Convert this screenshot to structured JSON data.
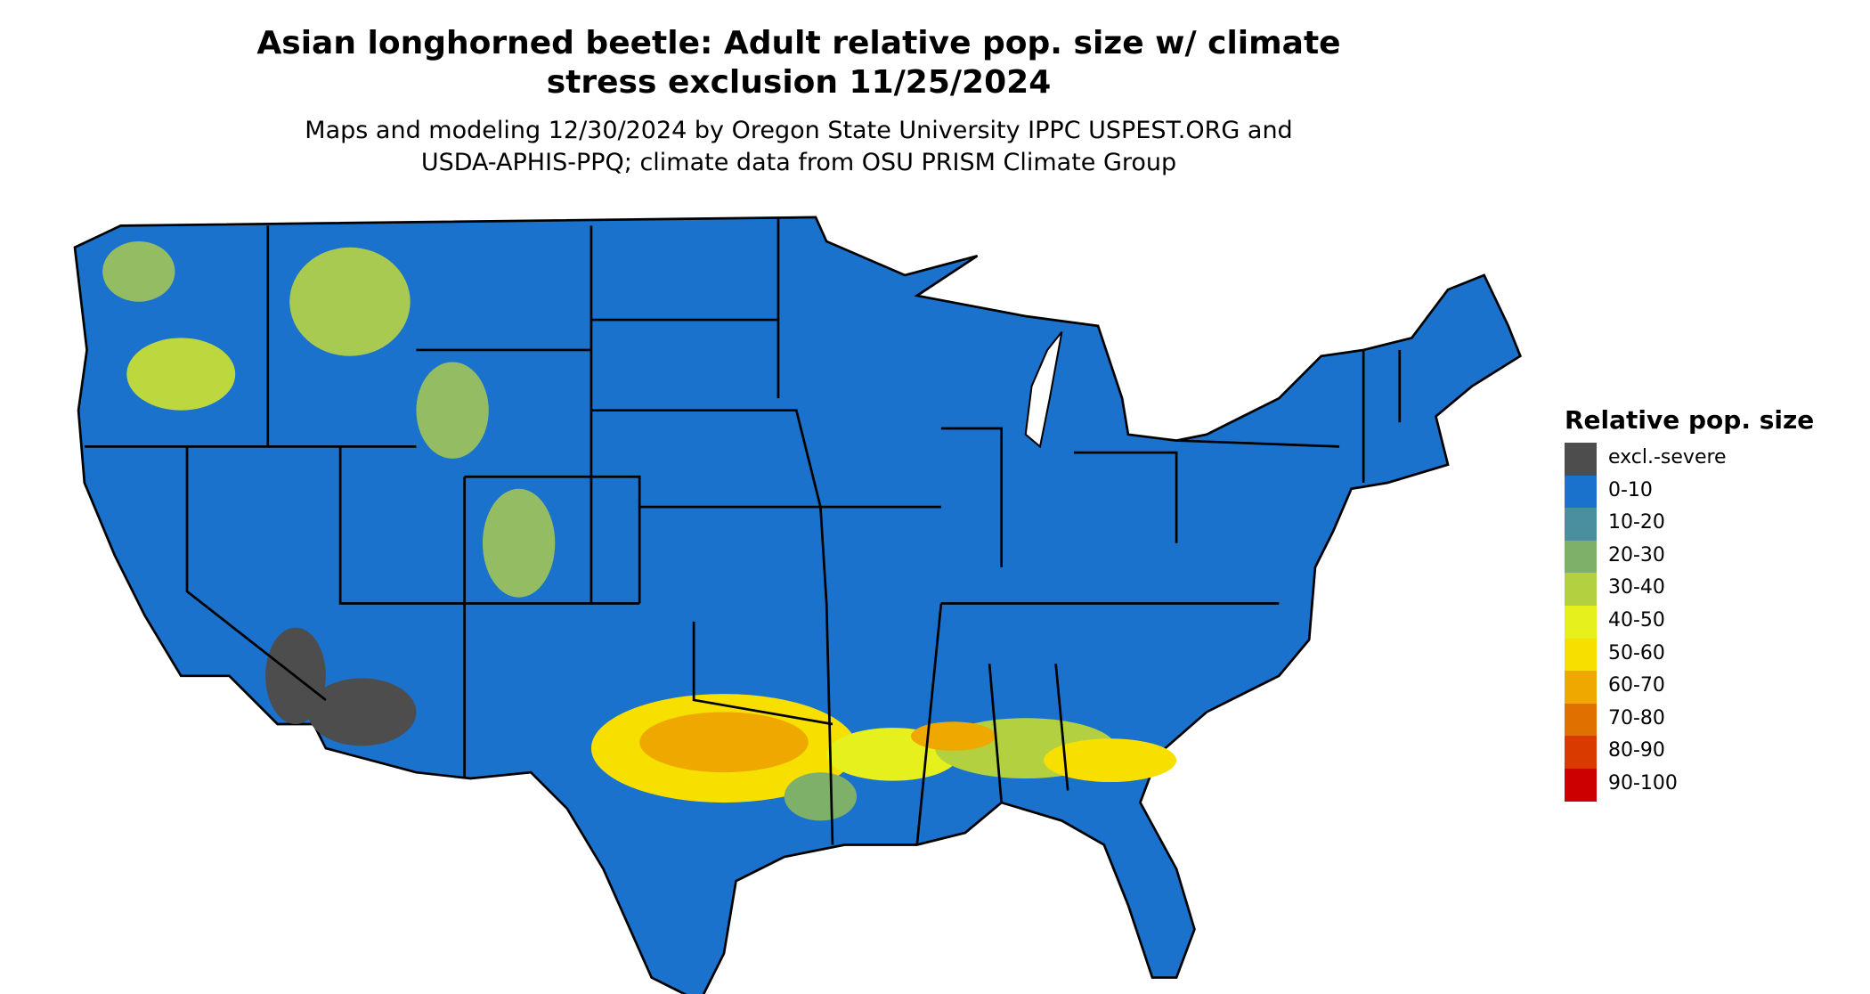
{
  "header": {
    "title": [
      "Asian longhorned beetle: Adult relative pop. size w/ climate",
      "stress exclusion 11/25/2024"
    ],
    "subtitle": [
      "Maps and modeling 12/30/2024 by Oregon State University IPPC USPEST.ORG and",
      "USDA-APHIS-PPQ; climate data from OSU PRISM Climate Group"
    ]
  },
  "legend": {
    "title": "Relative pop. size",
    "items": [
      {
        "label": "excl.-severe",
        "color": "#4d4d4d"
      },
      {
        "label": "0-10",
        "color": "#1b72cc"
      },
      {
        "label": "10-20",
        "color": "#4a8fa0"
      },
      {
        "label": "20-30",
        "color": "#7fb06a"
      },
      {
        "label": "30-40",
        "color": "#b3d040"
      },
      {
        "label": "40-50",
        "color": "#e6f01c"
      },
      {
        "label": "50-60",
        "color": "#f7e000"
      },
      {
        "label": "60-70",
        "color": "#eea800"
      },
      {
        "label": "70-80",
        "color": "#e07000"
      },
      {
        "label": "80-90",
        "color": "#d83a00"
      },
      {
        "label": "90-100",
        "color": "#cc0000"
      }
    ]
  }
}
